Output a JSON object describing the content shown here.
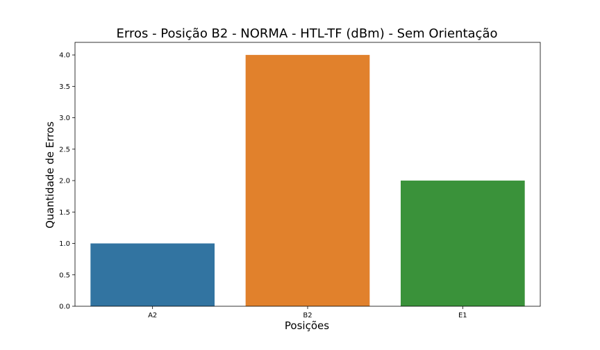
{
  "chart_data": {
    "type": "bar",
    "title": "Erros - Posição B2 - NORMA - HTL-TF (dBm) - Sem Orientação",
    "xlabel": "Posições",
    "ylabel": "Quantidade de Erros",
    "categories": [
      "A2",
      "B2",
      "E1"
    ],
    "values": [
      1.0,
      4.0,
      2.0
    ],
    "colors": [
      "#3274a1",
      "#e1812c",
      "#3a923a"
    ],
    "ylim": [
      0,
      4.2
    ],
    "yticks": [
      "0.0",
      "0.5",
      "1.0",
      "1.5",
      "2.0",
      "2.5",
      "3.0",
      "3.5",
      "4.0"
    ],
    "grid": false,
    "legend": "none"
  }
}
